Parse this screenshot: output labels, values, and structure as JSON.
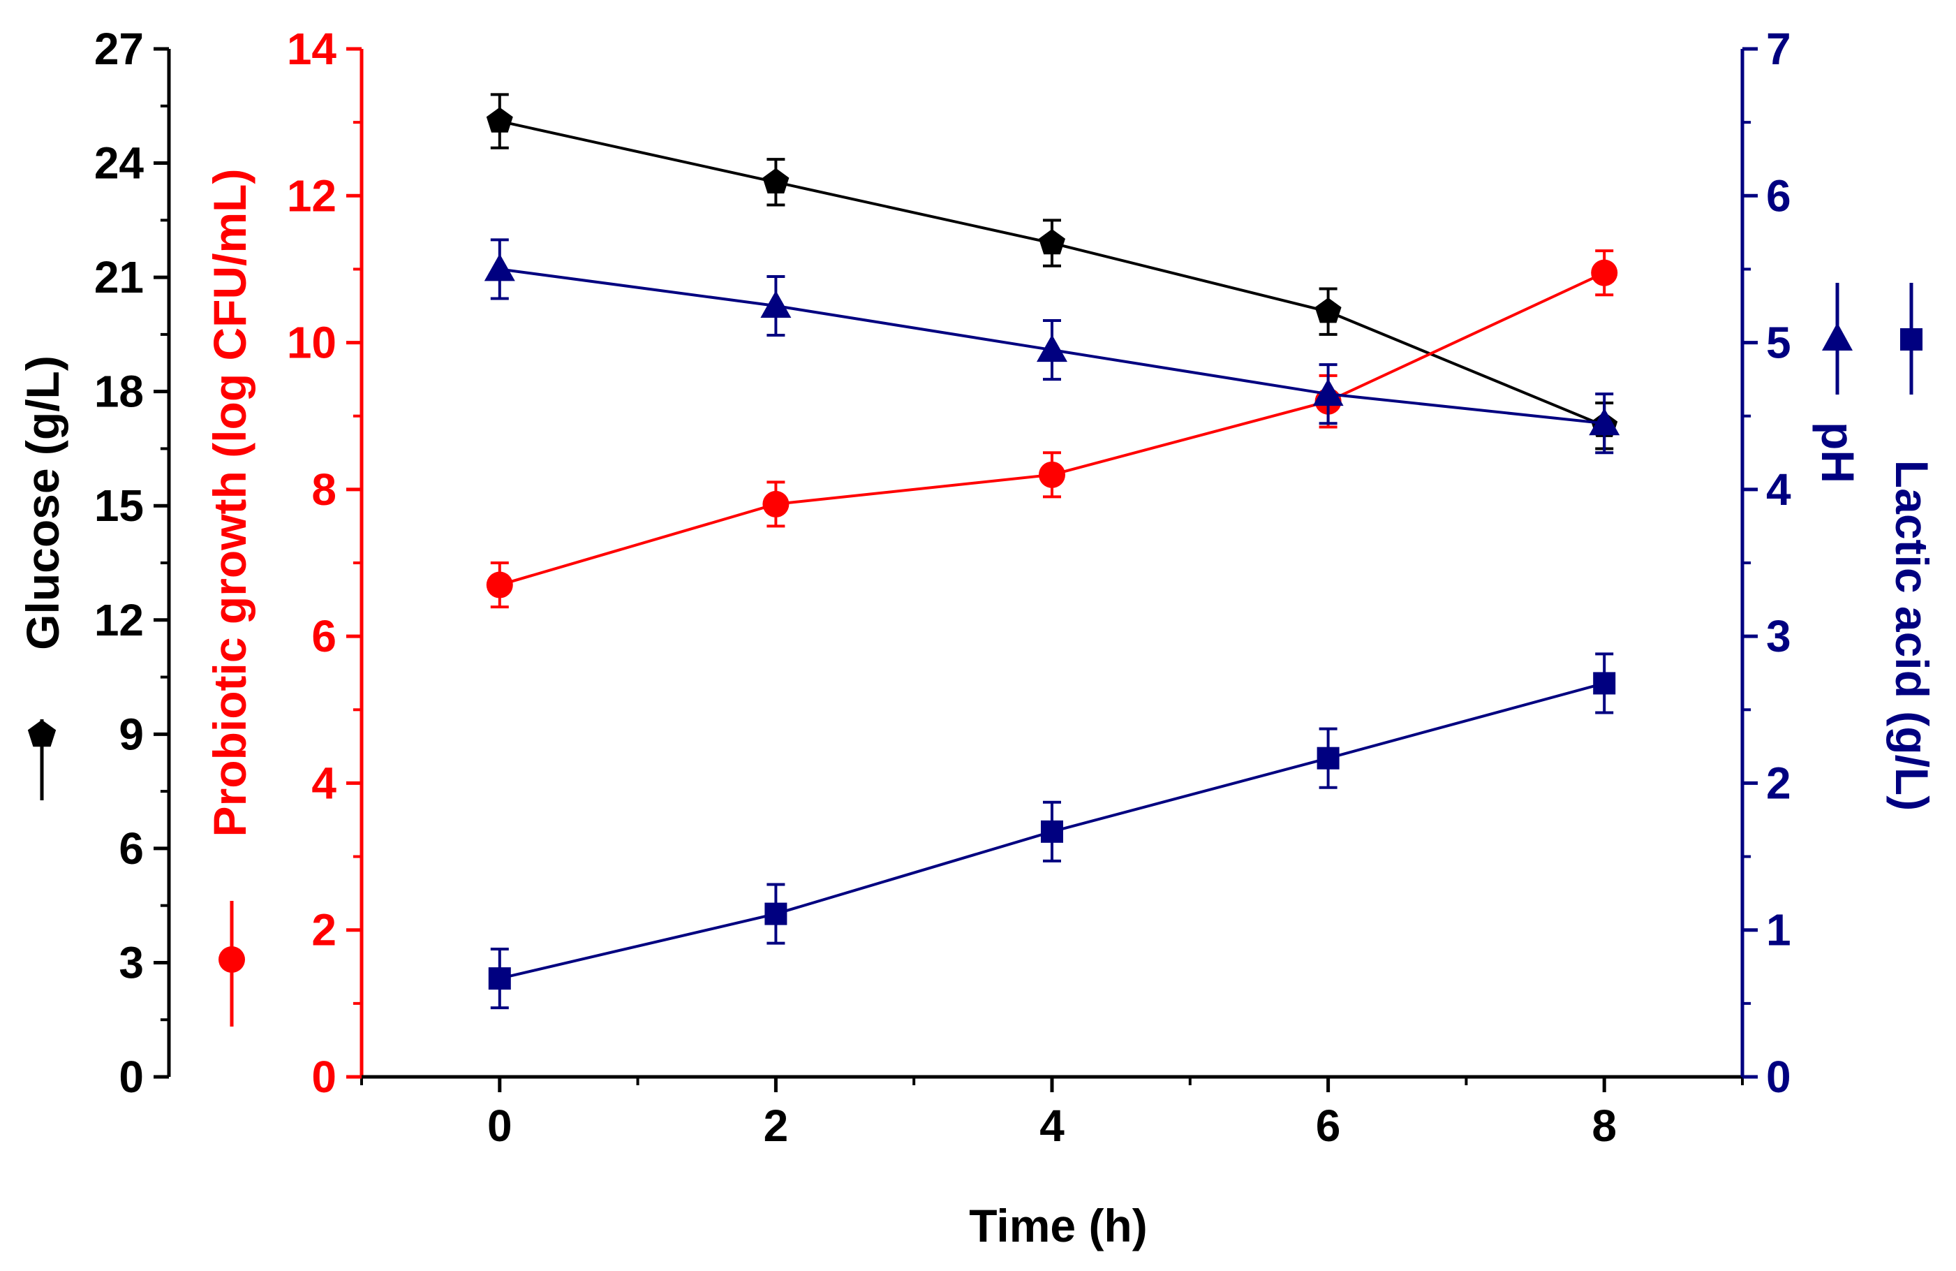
{
  "chart_data": {
    "type": "line",
    "xlabel": "Time (h)",
    "x_ticks": [
      "0",
      "2",
      "4",
      "6",
      "8"
    ],
    "xlim": [
      -1,
      9
    ],
    "x": [
      0,
      2,
      4,
      6,
      8
    ],
    "axes": {
      "glucose": {
        "label": "Glucose (g/L)",
        "ylim": [
          0,
          27
        ],
        "ticks": [
          "0",
          "3",
          "6",
          "9",
          "12",
          "15",
          "18",
          "21",
          "24",
          "27"
        ],
        "color": "#000000"
      },
      "growth": {
        "label": "Probiotic growth (log CFU/mL)",
        "ylim": [
          0,
          14
        ],
        "ticks": [
          "0",
          "2",
          "4",
          "6",
          "8",
          "10",
          "12",
          "14"
        ],
        "color": "#ff0000"
      },
      "right": {
        "ylim": [
          0,
          7
        ],
        "ticks": [
          "0",
          "1",
          "2",
          "3",
          "4",
          "5",
          "6",
          "7"
        ],
        "color": "#000080",
        "label_lactic": "Lactic acid (g/L)",
        "label_ph": "pH"
      }
    },
    "series": [
      {
        "name": "Glucose",
        "axis": "glucose",
        "marker": "pentagon",
        "color": "#000000",
        "values": [
          25.1,
          23.5,
          21.9,
          20.1,
          17.1
        ],
        "errors": [
          0.7,
          0.6,
          0.6,
          0.6,
          0.6
        ]
      },
      {
        "name": "Probiotic growth",
        "axis": "growth",
        "marker": "circle",
        "color": "#ff0000",
        "values": [
          6.7,
          7.8,
          8.2,
          9.2,
          10.95
        ],
        "errors": [
          0.3,
          0.3,
          0.3,
          0.35,
          0.3
        ]
      },
      {
        "name": "pH",
        "axis": "right",
        "marker": "triangle",
        "color": "#000080",
        "values": [
          5.5,
          5.25,
          4.95,
          4.65,
          4.45
        ],
        "errors": [
          0.2,
          0.2,
          0.2,
          0.2,
          0.2
        ]
      },
      {
        "name": "Lactic acid",
        "axis": "right",
        "marker": "square",
        "color": "#000080",
        "values": [
          0.67,
          1.11,
          1.67,
          2.17,
          2.68
        ],
        "errors": [
          0.2,
          0.2,
          0.2,
          0.2,
          0.2
        ]
      }
    ]
  }
}
